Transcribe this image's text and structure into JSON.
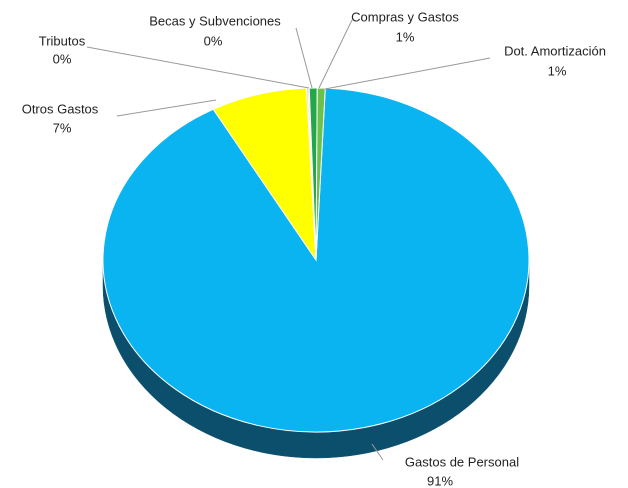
{
  "chart_data": {
    "type": "pie",
    "categories": [
      "Gastos de Personal",
      "Otros Gastos",
      "Tributos",
      "Becas y Subvenciones",
      "Compras y Gastos",
      "Dot. Amortización"
    ],
    "values": [
      91.3,
      7.3,
      0.1,
      0.1,
      0.6,
      0.6
    ],
    "value_labels": [
      "91%",
      "7%",
      "0%",
      "0%",
      "1%",
      "1%"
    ],
    "colors": [
      "#0ab4f0",
      "#ffff00",
      "#8c8cff",
      "#ff9c9c",
      "#22a84a",
      "#6cc04c"
    ],
    "side_colors": [
      "#0b4f6c",
      "#8c8c00",
      "#4a4a8c",
      "#8c5050",
      "#115a26",
      "#3a6a28"
    ]
  }
}
